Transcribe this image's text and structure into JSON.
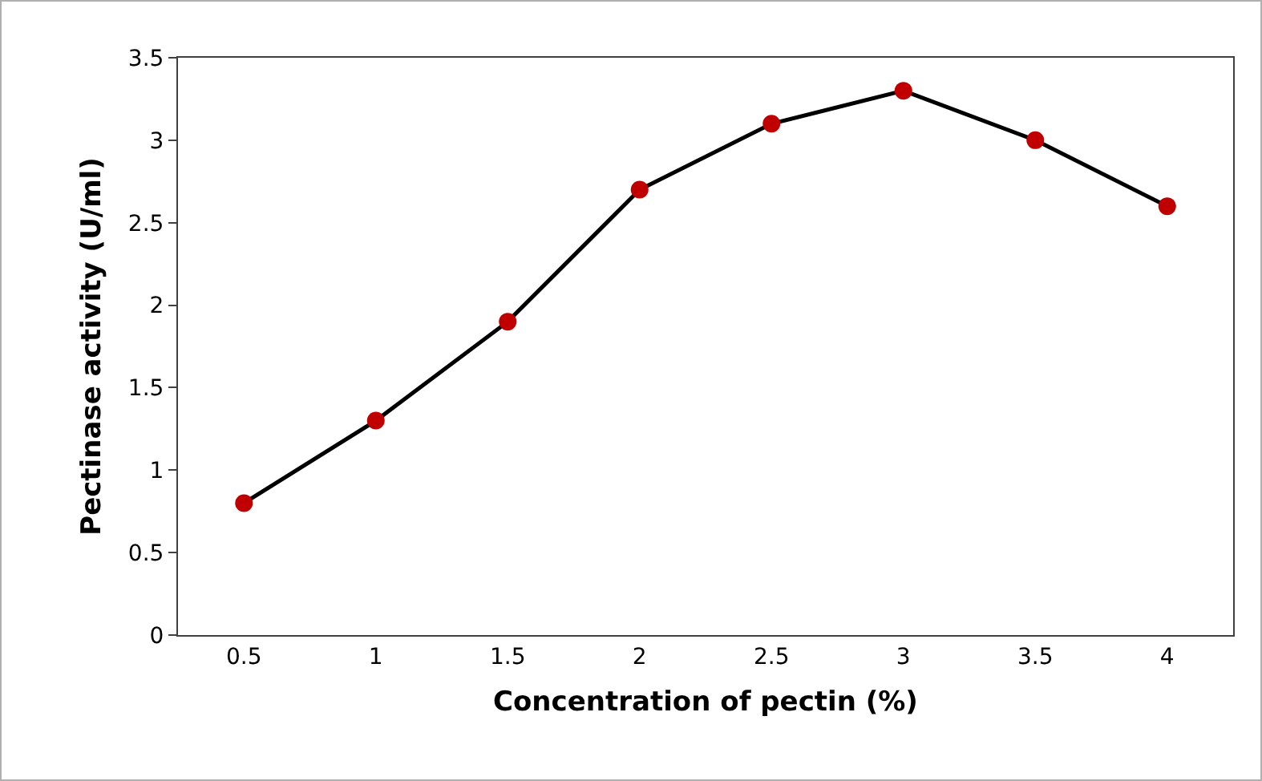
{
  "chart_data": {
    "type": "line",
    "xlabel": "Concentration of pectin (%)",
    "ylabel": "Pectinase activity (U/ml)",
    "categories": [
      "0.5",
      "1",
      "1.5",
      "2",
      "2.5",
      "3",
      "3.5",
      "4"
    ],
    "series": [
      {
        "color": "#000000",
        "colors": [
          "#c00000",
          "#c00000",
          "#c00000",
          "#c00000",
          "#c00000",
          "#c00000",
          "#c00000",
          "#c00000"
        ],
        "values": [
          0.8,
          1.3,
          1.9,
          2.7,
          3.1,
          3.3,
          3.0,
          2.6
        ]
      }
    ],
    "ylim": [
      0,
      3.5
    ],
    "yticks": [
      0,
      0.5,
      1,
      1.5,
      2,
      2.5,
      3,
      3.5
    ],
    "grid": false,
    "marker": "circle",
    "line_style": "solid"
  }
}
